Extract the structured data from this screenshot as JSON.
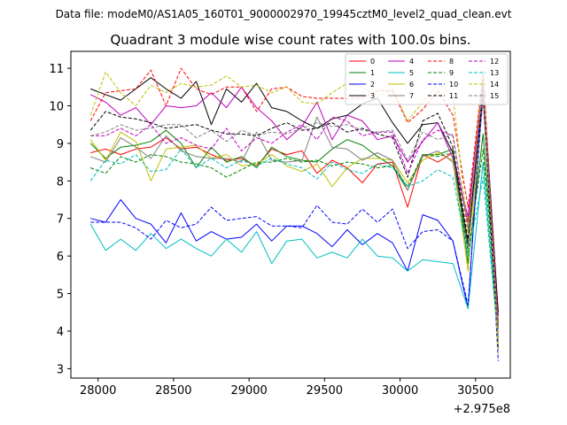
{
  "figure": {
    "suptitle": "Data file: modeM0/AS1A05_160T01_9000002970_19945cztM0_level2_quad_clean.evt",
    "background": "#ffffff"
  },
  "chart_data": {
    "type": "line",
    "title": "Quadrant 3 module wise count rates with 100.0s bins.",
    "xlabel": "",
    "ylabel": "",
    "x_offset_label": "+2.975e8",
    "xlim": [
      27820,
      30730
    ],
    "ylim": [
      2.75,
      11.45
    ],
    "xticks": [
      28000,
      28500,
      29000,
      29500,
      30000,
      30500
    ],
    "xtick_labels": [
      "28000",
      "28500",
      "29000",
      "29500",
      "30000",
      "30500"
    ],
    "yticks": [
      3,
      4,
      5,
      6,
      7,
      8,
      9,
      10,
      11
    ],
    "ytick_labels": [
      "3",
      "4",
      "5",
      "6",
      "7",
      "8",
      "9",
      "10",
      "11"
    ],
    "legend_position": "upper right",
    "x": [
      27950,
      28050,
      28150,
      28250,
      28350,
      28450,
      28550,
      28650,
      28750,
      28850,
      28950,
      29050,
      29150,
      29250,
      29350,
      29450,
      29550,
      29650,
      29750,
      29850,
      29950,
      30050,
      30150,
      30250,
      30350,
      30450,
      30550,
      30650
    ],
    "series": [
      {
        "name": "0",
        "color": "#ff0000",
        "dash": "solid",
        "values": [
          8.75,
          8.85,
          8.7,
          8.85,
          8.9,
          9.15,
          8.85,
          8.9,
          8.7,
          8.55,
          8.6,
          8.4,
          8.85,
          8.7,
          8.8,
          8.2,
          8.55,
          8.35,
          7.95,
          8.45,
          8.5,
          7.3,
          8.7,
          8.5,
          8.75,
          6.9,
          10.5,
          3.8
        ]
      },
      {
        "name": "1",
        "color": "#008000",
        "dash": "solid",
        "values": [
          9.0,
          8.6,
          8.9,
          8.95,
          9.05,
          9.35,
          9.0,
          8.35,
          8.9,
          8.5,
          8.65,
          8.35,
          8.9,
          8.65,
          8.55,
          8.5,
          8.85,
          9.1,
          8.95,
          8.65,
          8.4,
          7.75,
          8.7,
          8.7,
          8.85,
          5.8,
          9.25,
          4.2
        ]
      },
      {
        "name": "2",
        "color": "#0000ff",
        "dash": "solid",
        "values": [
          7.0,
          6.9,
          7.5,
          7.0,
          6.85,
          6.35,
          7.15,
          6.4,
          6.65,
          6.45,
          6.5,
          6.85,
          6.4,
          6.8,
          6.8,
          6.6,
          6.25,
          6.7,
          6.3,
          6.6,
          6.35,
          5.6,
          7.1,
          6.95,
          6.4,
          4.6,
          10.75,
          4.4
        ]
      },
      {
        "name": "3",
        "color": "#000000",
        "dash": "solid",
        "values": [
          10.45,
          10.3,
          10.15,
          10.45,
          10.75,
          10.45,
          10.2,
          10.65,
          9.5,
          10.45,
          10.1,
          10.6,
          9.95,
          9.85,
          9.6,
          9.4,
          9.65,
          9.75,
          10.05,
          10.2,
          9.55,
          9.0,
          9.5,
          9.55,
          8.75,
          6.3,
          10.5,
          4.5
        ]
      },
      {
        "name": "4",
        "color": "#c000c0",
        "dash": "solid",
        "values": [
          10.3,
          10.1,
          9.75,
          9.95,
          9.5,
          10.0,
          9.95,
          10.0,
          10.35,
          9.95,
          10.5,
          9.95,
          9.6,
          9.1,
          9.45,
          10.1,
          9.1,
          9.75,
          9.6,
          9.1,
          9.2,
          8.5,
          9.05,
          9.55,
          8.6,
          7.05,
          10.8,
          3.5
        ]
      },
      {
        "name": "5",
        "color": "#00bfbf",
        "dash": "solid",
        "values": [
          6.85,
          6.15,
          6.45,
          6.15,
          6.6,
          6.2,
          6.45,
          6.2,
          6.0,
          6.45,
          6.1,
          6.65,
          5.8,
          6.4,
          6.45,
          5.95,
          6.1,
          5.95,
          6.45,
          6.0,
          5.95,
          5.6,
          5.9,
          5.85,
          5.8,
          4.6,
          8.5,
          3.7
        ]
      },
      {
        "name": "6",
        "color": "#bfbf00",
        "dash": "solid",
        "values": [
          9.1,
          8.55,
          9.3,
          9.05,
          8.0,
          8.85,
          8.9,
          8.95,
          8.6,
          8.7,
          8.4,
          8.45,
          8.7,
          8.4,
          8.25,
          8.45,
          7.85,
          8.35,
          8.6,
          8.6,
          8.55,
          7.95,
          8.55,
          8.75,
          8.55,
          5.6,
          10.2,
          3.6
        ]
      },
      {
        "name": "7",
        "color": "#808080",
        "dash": "solid",
        "values": [
          8.65,
          8.5,
          9.15,
          8.9,
          8.6,
          9.2,
          8.8,
          8.65,
          8.6,
          8.6,
          8.5,
          9.3,
          8.55,
          8.5,
          8.55,
          9.7,
          8.9,
          8.85,
          8.55,
          8.75,
          8.55,
          7.75,
          8.65,
          8.8,
          8.5,
          6.2,
          10.15,
          4.2
        ]
      },
      {
        "name": "8",
        "color": "#ff0000",
        "dash": "dashed",
        "values": [
          9.6,
          10.35,
          10.4,
          10.45,
          10.95,
          10.0,
          11.0,
          10.45,
          10.3,
          10.5,
          10.5,
          9.85,
          10.45,
          10.5,
          10.25,
          10.2,
          10.2,
          10.2,
          10.2,
          10.4,
          10.4,
          9.55,
          9.9,
          10.4,
          9.75,
          7.3,
          10.9,
          4.2
        ]
      },
      {
        "name": "9",
        "color": "#008000",
        "dash": "dashed",
        "values": [
          8.35,
          8.2,
          8.65,
          8.5,
          8.7,
          8.65,
          8.5,
          8.45,
          8.35,
          8.1,
          8.3,
          8.5,
          8.5,
          8.6,
          8.5,
          8.55,
          8.4,
          8.5,
          8.45,
          8.35,
          8.4,
          7.85,
          8.7,
          8.65,
          8.75,
          6.05,
          8.85,
          4.05
        ]
      },
      {
        "name": "10",
        "color": "#0000ff",
        "dash": "dashed",
        "values": [
          6.9,
          6.9,
          6.9,
          6.75,
          6.45,
          6.95,
          6.75,
          6.85,
          7.3,
          6.95,
          7.0,
          7.05,
          6.8,
          6.8,
          6.75,
          7.35,
          6.9,
          6.85,
          7.25,
          6.9,
          7.25,
          6.2,
          6.65,
          6.7,
          6.4,
          4.7,
          10.5,
          3.2
        ]
      },
      {
        "name": "11",
        "color": "#000000",
        "dash": "dashed",
        "values": [
          9.35,
          9.85,
          9.7,
          9.65,
          9.55,
          9.4,
          9.45,
          9.5,
          9.35,
          9.25,
          9.25,
          9.2,
          9.4,
          9.55,
          9.35,
          9.4,
          9.55,
          9.3,
          9.4,
          9.25,
          9.15,
          8.1,
          9.6,
          9.8,
          8.9,
          6.45,
          10.35,
          3.5
        ]
      },
      {
        "name": "12",
        "color": "#c000c0",
        "dash": "dashed",
        "values": [
          9.2,
          9.2,
          9.4,
          9.2,
          9.5,
          9.0,
          9.15,
          8.95,
          8.85,
          9.4,
          8.8,
          9.15,
          9.0,
          9.3,
          9.5,
          9.1,
          9.7,
          9.6,
          9.2,
          9.3,
          9.3,
          8.2,
          9.1,
          9.35,
          9.2,
          6.7,
          10.45,
          4.1
        ]
      },
      {
        "name": "13",
        "color": "#00bfbf",
        "dash": "dashed",
        "values": [
          8.0,
          8.55,
          8.45,
          8.7,
          8.25,
          8.3,
          8.85,
          8.35,
          8.6,
          8.35,
          8.55,
          8.4,
          8.6,
          8.45,
          8.35,
          8.05,
          8.5,
          8.3,
          8.2,
          8.45,
          8.35,
          7.85,
          8.0,
          8.3,
          8.1,
          6.0,
          8.1,
          3.75
        ]
      },
      {
        "name": "14",
        "color": "#bfbf00",
        "dash": "dashed",
        "values": [
          9.75,
          10.9,
          10.35,
          10.0,
          10.55,
          10.35,
          10.6,
          10.5,
          10.55,
          10.8,
          10.5,
          10.55,
          10.35,
          10.5,
          10.1,
          10.05,
          10.35,
          10.6,
          10.5,
          10.25,
          10.45,
          9.6,
          10.1,
          10.6,
          10.3,
          6.6,
          10.95,
          3.4
        ]
      },
      {
        "name": "15",
        "color": "#808080",
        "dash": "dashed",
        "values": [
          9.2,
          9.3,
          9.5,
          9.35,
          9.4,
          9.5,
          9.5,
          9.15,
          9.35,
          9.05,
          9.35,
          9.2,
          9.3,
          9.25,
          9.4,
          9.55,
          9.45,
          9.5,
          9.35,
          9.3,
          9.35,
          8.55,
          9.3,
          9.1,
          9.25,
          6.75,
          10.55,
          4.0
        ]
      }
    ]
  }
}
